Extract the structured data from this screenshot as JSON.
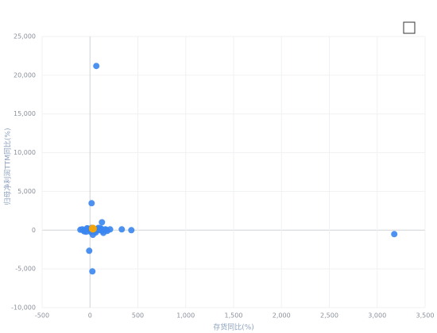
{
  "chart_data": {
    "type": "scatter",
    "x_label": "存货同比(%)",
    "y_label": "归母净利润TTM同比(%)",
    "xlim": [
      -500,
      3500
    ],
    "ylim": [
      -10000,
      25000
    ],
    "xticks": [
      -500,
      0,
      500,
      {
        "value": 1000,
        "label": "1,000"
      },
      {
        "value": 1500,
        "label": "1,500"
      },
      {
        "value": 2000,
        "label": "2,000"
      },
      {
        "value": 2500,
        "label": "2,500"
      },
      {
        "value": 3000,
        "label": "3,000"
      },
      {
        "value": 3500,
        "label": "3,500"
      }
    ],
    "yticks": [
      {
        "value": -10000,
        "label": "-10,000"
      },
      {
        "value": -5000,
        "label": "-5,000"
      },
      0,
      {
        "value": 5000,
        "label": "5,000"
      },
      {
        "value": 10000,
        "label": "10,000"
      },
      {
        "value": 15000,
        "label": "15,000"
      },
      {
        "value": 20000,
        "label": "20,000"
      },
      {
        "value": 25000,
        "label": "25,000"
      }
    ],
    "grid": true,
    "series": [
      {
        "color": "#3b86f0",
        "x": [
          66,
          3178,
          17,
          -8,
          25,
          125,
          332,
          432,
          210,
          30,
          -100,
          -70,
          -40,
          -20,
          0,
          20,
          40,
          60,
          80,
          100,
          120,
          140,
          160,
          180,
          -60,
          -30,
          10,
          50,
          90,
          130,
          170,
          5,
          70,
          110,
          -80
        ],
        "y": [
          21190,
          -512,
          3480,
          -2660,
          -5320,
          1020,
          100,
          0,
          100,
          -600,
          50,
          0,
          -200,
          200,
          -100,
          300,
          100,
          -300,
          200,
          0,
          150,
          -350,
          100,
          -100,
          -150,
          250,
          -250,
          -150,
          300,
          -100,
          50,
          100,
          0,
          250,
          100
        ]
      },
      {
        "color": "#f2a50c",
        "x": [
          30
        ],
        "y": [
          200
        ]
      }
    ]
  }
}
